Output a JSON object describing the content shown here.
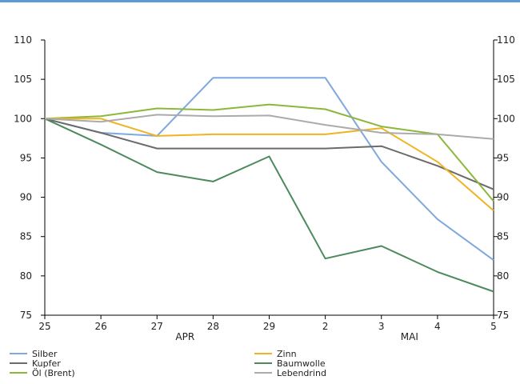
{
  "chart_data": {
    "type": "line",
    "x_categories": [
      "25",
      "26",
      "27",
      "28",
      "29",
      "2",
      "3",
      "4",
      "5"
    ],
    "month_labels": [
      {
        "label": "APR",
        "at_index": 2.5
      },
      {
        "label": "MAI",
        "at_index": 6.5
      }
    ],
    "ylim": [
      75,
      110
    ],
    "y_ticks": [
      75,
      80,
      85,
      90,
      95,
      100,
      105,
      110
    ],
    "grid": false,
    "dual_y_axis": true,
    "legend_position": "bottom",
    "series": [
      {
        "name": "Silber",
        "color": "#7fa8dc",
        "values": [
          100,
          98.2,
          97.8,
          105.2,
          105.2,
          105.2,
          94.5,
          87.2,
          82
        ]
      },
      {
        "name": "Kupfer",
        "color": "#6b6b6b",
        "values": [
          100,
          98.2,
          96.2,
          96.2,
          96.2,
          96.2,
          96.5,
          94,
          91
        ]
      },
      {
        "name": "Öl (Brent)",
        "color": "#8bb83a",
        "values": [
          100,
          100.3,
          101.3,
          101.1,
          101.8,
          101.2,
          99,
          98,
          89.5
        ]
      },
      {
        "name": "Zinn",
        "color": "#f0b323",
        "values": [
          100,
          100,
          97.8,
          98,
          98,
          98,
          98.8,
          94.5,
          88.3
        ]
      },
      {
        "name": "Baumwolle",
        "color": "#4c8a5e",
        "values": [
          100,
          96.7,
          93.2,
          92,
          95.2,
          82.2,
          83.8,
          80.5,
          78
        ]
      },
      {
        "name": "Lebendrind",
        "color": "#ababab",
        "values": [
          100,
          99.6,
          100.5,
          100.3,
          100.4,
          99.2,
          98.2,
          98,
          97.4
        ]
      }
    ]
  }
}
